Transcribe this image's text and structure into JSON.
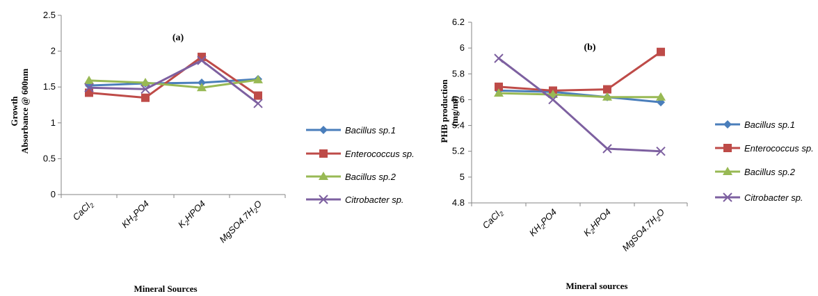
{
  "chart_data": [
    {
      "type": "line",
      "panel_label": "(a)",
      "categories_display": [
        {
          "base": "CaCl",
          "sub": "2",
          "rest": ""
        },
        {
          "base": "KH",
          "sub": "2",
          "rest": "PO4"
        },
        {
          "base": "K",
          "sub": "2",
          "rest": "HPO4"
        },
        {
          "base": "MgSO4.7H",
          "sub": "2",
          "rest": "O"
        }
      ],
      "categories": [
        "CaCl2",
        "KH2PO4",
        "K2HPO4",
        "MgSO4.7H2O"
      ],
      "xlabel": "Mineral Sources",
      "ylabel_lines": [
        "Growth",
        "Absorbance @ 600nm"
      ],
      "ylim": [
        0,
        2.5
      ],
      "yticks": [
        "0",
        "0.5",
        "1",
        "1.5",
        "2",
        "2.5"
      ],
      "series": [
        {
          "name": "Bacillus sp.1",
          "values": [
            1.52,
            1.55,
            1.56,
            1.61
          ],
          "color": "#4a7ebb",
          "marker": "diamond"
        },
        {
          "name": "Enterococcus sp.",
          "values": [
            1.42,
            1.35,
            1.92,
            1.38
          ],
          "color": "#be4b48",
          "marker": "square"
        },
        {
          "name": "Bacillus sp.2",
          "values": [
            1.59,
            1.56,
            1.49,
            1.6
          ],
          "color": "#98b954",
          "marker": "triangle"
        },
        {
          "name": "Citrobacter sp.",
          "values": [
            1.49,
            1.47,
            1.87,
            1.27
          ],
          "color": "#7d60a0",
          "marker": "x"
        }
      ],
      "legend_position": "right"
    },
    {
      "type": "line",
      "panel_label": "(b)",
      "categories_display": [
        {
          "base": "CaCl",
          "sub": "2",
          "rest": ""
        },
        {
          "base": "KH",
          "sub": "2",
          "rest": "PO4"
        },
        {
          "base": "K",
          "sub": "2",
          "rest": "HPO4"
        },
        {
          "base": "MgSO4.7H",
          "sub": "2",
          "rest": "O"
        }
      ],
      "categories": [
        "CaCl2",
        "KH2PO4",
        "K2HPO4",
        "MgSO4.7H2O"
      ],
      "xlabel": "Mineral sources",
      "ylabel_lines": [
        "PHB production",
        "(mg/ml)"
      ],
      "ylim": [
        4.8,
        6.2
      ],
      "yticks": [
        "4.8",
        "5",
        "5.2",
        "5.4",
        "5.6",
        "5.8",
        "6",
        "6.2"
      ],
      "series": [
        {
          "name": "Bacillus sp.1",
          "values": [
            5.67,
            5.66,
            5.62,
            5.58
          ],
          "color": "#4a7ebb",
          "marker": "diamond"
        },
        {
          "name": "Enterococcus sp.",
          "values": [
            5.7,
            5.67,
            5.68,
            5.97
          ],
          "color": "#be4b48",
          "marker": "square"
        },
        {
          "name": "Bacillus sp.2",
          "values": [
            5.65,
            5.64,
            5.62,
            5.62
          ],
          "color": "#98b954",
          "marker": "triangle"
        },
        {
          "name": "Citrobacter sp.",
          "values": [
            5.92,
            5.6,
            5.22,
            5.2
          ],
          "color": "#7d60a0",
          "marker": "x"
        }
      ],
      "legend_position": "right"
    }
  ]
}
